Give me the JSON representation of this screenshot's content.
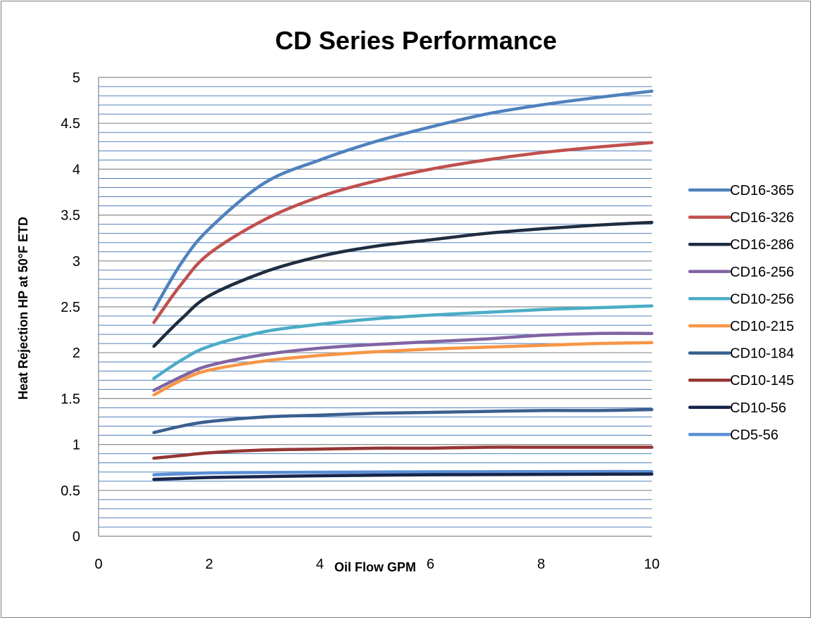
{
  "chart_data": {
    "type": "line",
    "title": "CD Series Performance",
    "xlabel": "Oil Flow GPM",
    "ylabel": "Heat Rejection HP at 50°F ETD",
    "xlim": [
      0,
      10
    ],
    "ylim": [
      0,
      5
    ],
    "x_ticks": [
      "0",
      "2",
      "4",
      "6",
      "8",
      "10"
    ],
    "y_ticks": [
      "0",
      "0.5",
      "1",
      "1.5",
      "2",
      "2.5",
      "3",
      "3.5",
      "4",
      "4.5",
      "5"
    ],
    "grid": "horizontal",
    "legend": "right",
    "x": [
      1,
      1.5,
      2,
      3,
      4,
      5,
      6,
      7,
      8,
      9,
      10
    ],
    "series": [
      {
        "name": "CD16-365",
        "color": "#4f81bd",
        "values": [
          2.47,
          2.98,
          3.35,
          3.85,
          4.1,
          4.3,
          4.46,
          4.6,
          4.7,
          4.78,
          4.85
        ]
      },
      {
        "name": "CD16-326",
        "color": "#c0504d",
        "values": [
          2.33,
          2.75,
          3.08,
          3.45,
          3.7,
          3.87,
          4.0,
          4.1,
          4.18,
          4.24,
          4.29
        ]
      },
      {
        "name": "CD16-286",
        "color": "#1f2d40",
        "values": [
          2.07,
          2.37,
          2.62,
          2.88,
          3.05,
          3.16,
          3.23,
          3.3,
          3.35,
          3.39,
          3.42
        ]
      },
      {
        "name": "CD16-256",
        "color": "#8064a2",
        "values": [
          1.59,
          1.74,
          1.86,
          1.98,
          2.05,
          2.09,
          2.12,
          2.15,
          2.19,
          2.21,
          2.21
        ]
      },
      {
        "name": "CD10-256",
        "color": "#4bacc6",
        "values": [
          1.72,
          1.92,
          2.07,
          2.23,
          2.31,
          2.37,
          2.41,
          2.44,
          2.47,
          2.49,
          2.51
        ]
      },
      {
        "name": "CD10-215",
        "color": "#f79646",
        "values": [
          1.54,
          1.7,
          1.81,
          1.91,
          1.97,
          2.01,
          2.04,
          2.06,
          2.08,
          2.1,
          2.11
        ]
      },
      {
        "name": "CD10-184",
        "color": "#3a5f8f",
        "values": [
          1.13,
          1.2,
          1.25,
          1.3,
          1.32,
          1.34,
          1.35,
          1.36,
          1.37,
          1.37,
          1.38
        ]
      },
      {
        "name": "CD10-145",
        "color": "#943634",
        "values": [
          0.85,
          0.88,
          0.91,
          0.94,
          0.95,
          0.96,
          0.96,
          0.97,
          0.97,
          0.97,
          0.97
        ]
      },
      {
        "name": "CD10-56",
        "color": "#17244a",
        "values": [
          0.62,
          0.63,
          0.64,
          0.65,
          0.66,
          0.665,
          0.67,
          0.672,
          0.674,
          0.676,
          0.678
        ]
      },
      {
        "name": "CD5-56",
        "color": "#5b8fd6",
        "values": [
          0.67,
          0.68,
          0.69,
          0.695,
          0.698,
          0.7,
          0.702,
          0.703,
          0.704,
          0.705,
          0.705
        ]
      }
    ]
  }
}
